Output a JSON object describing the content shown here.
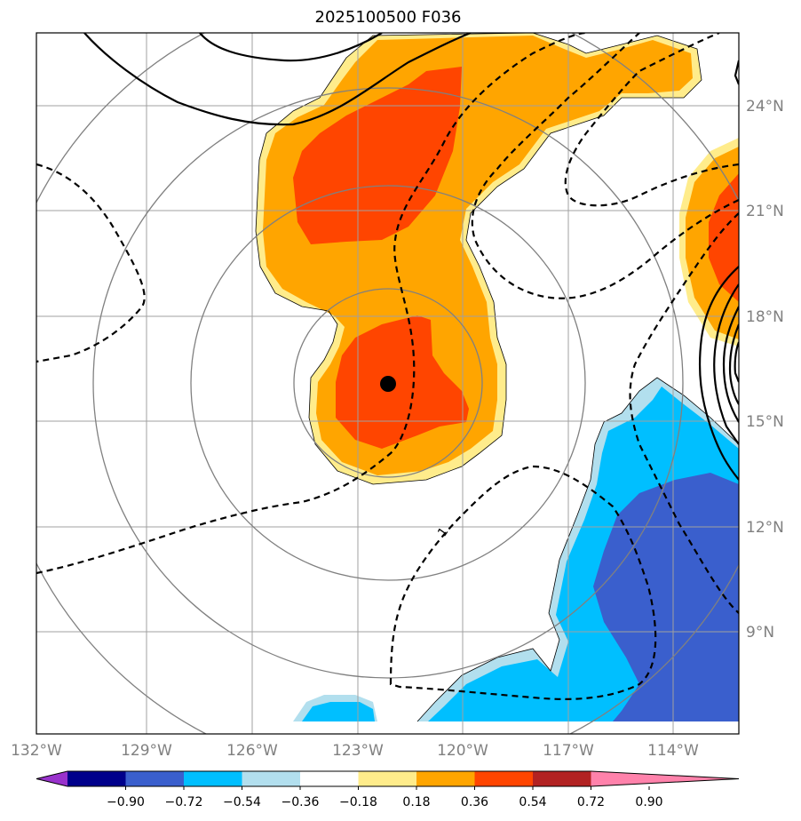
{
  "title": "2025100500 F036",
  "lon_labels": [
    "132°W",
    "129°W",
    "126°W",
    "123°W",
    "120°W",
    "117°W",
    "114°W"
  ],
  "lat_labels": [
    "24°N",
    "21°N",
    "18°N",
    "15°N",
    "12°N",
    "9°N"
  ],
  "contour_label": "1",
  "storm_center": {
    "lon": -122.2,
    "lat": 16.1
  },
  "colorbar": {
    "ticks": [
      "−0.90",
      "−0.72",
      "−0.54",
      "−0.36",
      "−0.18",
      "0.18",
      "0.36",
      "0.54",
      "0.72",
      "0.90"
    ],
    "colors": [
      "#9932CC",
      "#00008B",
      "#3A5FCD",
      "#00BFFF",
      "#B2DFEE",
      "#FFFFFF",
      "#FFEC8B",
      "#FFA500",
      "#FF4500",
      "#B22222",
      "#FF82AB"
    ]
  },
  "shading_colors": {
    "orange": "#FFA500",
    "orange_red": "#FF4500",
    "light_yellow": "#FFEC8B",
    "deep_sky_blue": "#00BFFF",
    "royal_blue": "#3A5FCD",
    "light_blue": "#B2DFEE"
  }
}
